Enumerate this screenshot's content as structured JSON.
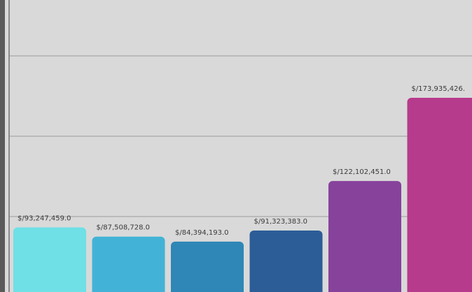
{
  "chart_data": {
    "type": "bar",
    "title": "",
    "xlabel": "",
    "ylabel": "",
    "categories": [
      "",
      "",
      "",
      "",
      "",
      ""
    ],
    "values": [
      93247459.0,
      87508728.0,
      84394193.0,
      91323383.0,
      122102451.0,
      173935426.0
    ],
    "data_labels": [
      "$/93,247,459.0",
      "$/87,508,728.0",
      "$/84,394,193.0",
      "$/91,323,383.0",
      "$/122,102,451.0",
      "$/173,935,426."
    ],
    "bar_colors": [
      "#6ee0e6",
      "#42b3d6",
      "#2e87b6",
      "#2c5d97",
      "#87429c",
      "#b73b8c"
    ],
    "grid": true,
    "ylim": [
      0,
      180000000
    ]
  },
  "colors": {
    "background": "#d9d9d9",
    "gridline": "#9a9a9a",
    "axis_left": "#5a5a5a"
  }
}
